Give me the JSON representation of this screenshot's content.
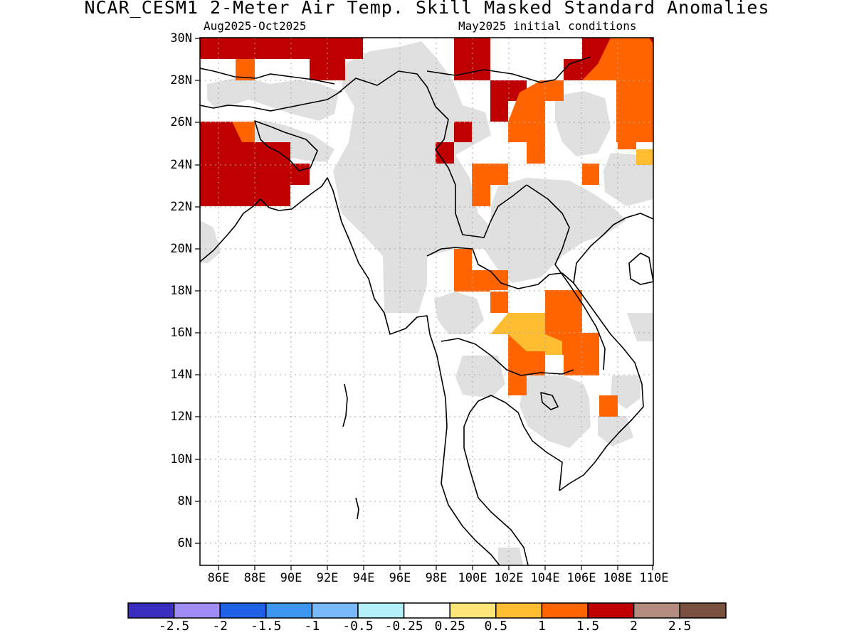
{
  "title": "NCAR_CESM1 2-Meter Air Temp. Skill Masked Standard Anomalies",
  "subtitle_left": "Aug2025-Oct2025",
  "subtitle_right": "May2025 initial conditions",
  "map": {
    "lat_labels": [
      "30N",
      "28N",
      "26N",
      "24N",
      "22N",
      "20N",
      "18N",
      "16N",
      "14N",
      "12N",
      "10N",
      "8N",
      "6N"
    ],
    "lon_labels": [
      "86E",
      "88E",
      "90E",
      "92E",
      "94E",
      "96E",
      "98E",
      "100E",
      "102E",
      "104E",
      "106E",
      "108E",
      "110E"
    ],
    "lat_range": [
      5,
      30
    ],
    "lon_range": [
      85,
      110
    ],
    "grid": "dotted",
    "mask_color": "#e0e0e0",
    "coastline_color": "#000000"
  },
  "colorbar": {
    "labels": [
      "-2.5",
      "-2",
      "-1.5",
      "-1",
      "-0.5",
      "-0.25",
      "0.25",
      "0.5",
      "1",
      "1.5",
      "2",
      "2.5"
    ],
    "colors": [
      "#3a2ec0",
      "#a08cf5",
      "#1e60e6",
      "#3c96f0",
      "#78b9fa",
      "#b4f0fa",
      "#ffffff",
      "#ffe678",
      "#ffbe32",
      "#ff6400",
      "#c00000",
      "#b48c80",
      "#7a5040"
    ]
  }
}
